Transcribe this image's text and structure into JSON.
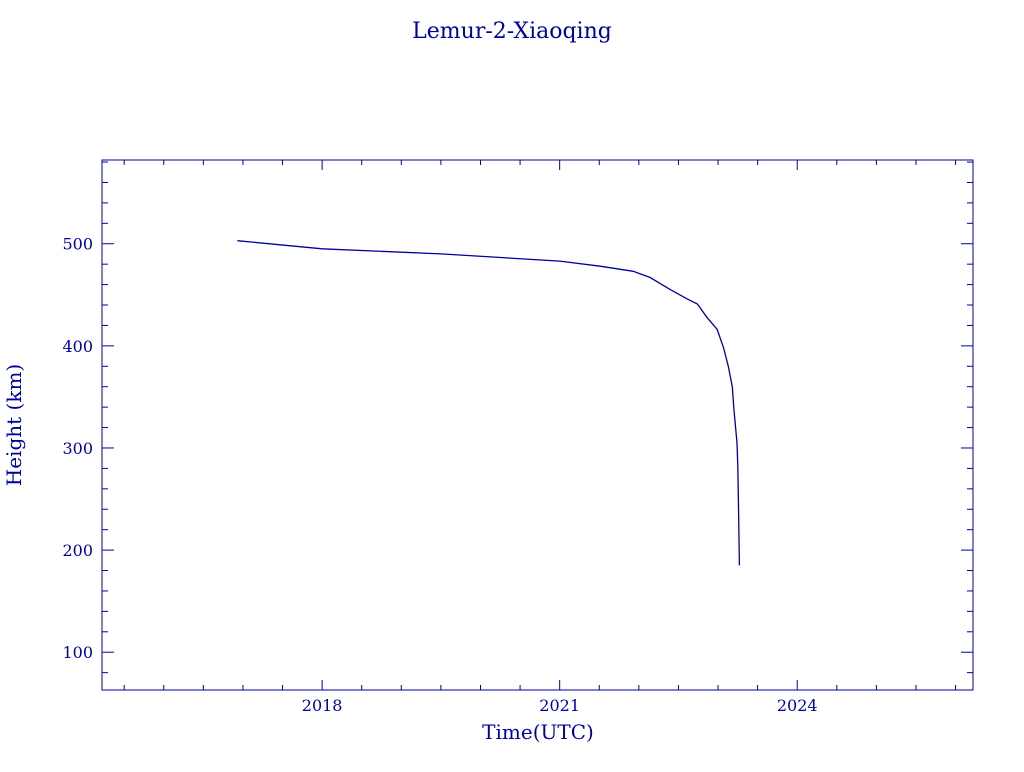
{
  "chart_data": {
    "type": "line",
    "title": "Lemur-2-Xiaoqing",
    "xlabel": "Time(UTC)",
    "ylabel": "Height (km)",
    "xlim": [
      2015.22,
      2026.22
    ],
    "ylim": [
      63,
      582
    ],
    "x_ticks": [
      2018,
      2021,
      2024
    ],
    "y_ticks": [
      100,
      200,
      300,
      400,
      500
    ],
    "grid": false,
    "color": "#0000a0",
    "series": [
      {
        "x": [
          2016.93,
          2018.0,
          2019.5,
          2021.0,
          2021.51,
          2021.93,
          2022.14,
          2022.4,
          2022.61,
          2022.74,
          2022.86,
          2022.99,
          2023.07,
          2023.13,
          2023.18,
          2023.2,
          2023.24,
          2023.25,
          2023.26,
          2023.27
        ],
        "y": [
          503,
          495,
          490,
          483,
          478,
          473,
          467,
          455,
          446,
          441,
          428,
          416,
          398,
          380,
          360,
          338,
          305,
          282,
          237,
          185
        ]
      }
    ]
  }
}
